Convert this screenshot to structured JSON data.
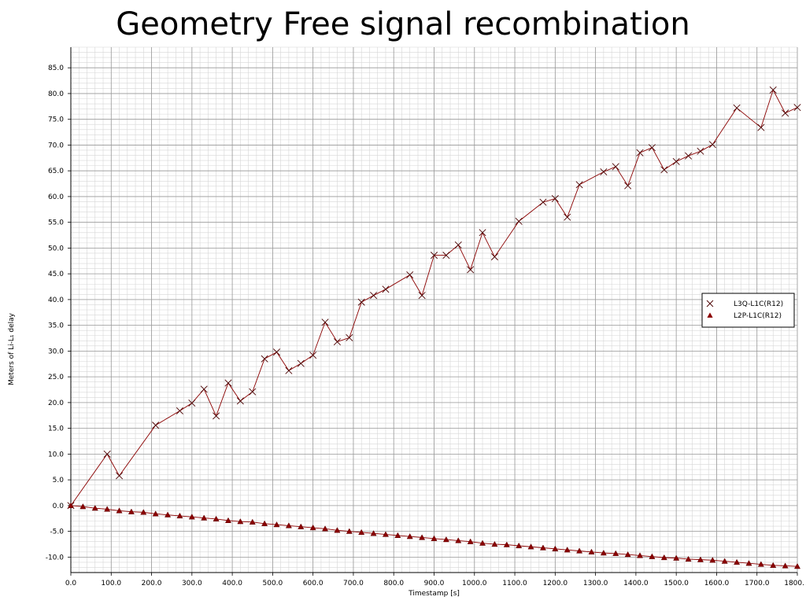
{
  "chart_data": {
    "type": "line",
    "title": "Geometry Free signal recombination",
    "xlabel": "Timestamp [s]",
    "ylabel": "Meters of Li-L₁ delay",
    "xlim": [
      0,
      1800
    ],
    "ylim": [
      -13,
      89
    ],
    "x_ticks": [
      0,
      100,
      200,
      300,
      400,
      500,
      600,
      700,
      800,
      900,
      1000,
      1100,
      1200,
      1300,
      1400,
      1500,
      1600,
      1700,
      1800
    ],
    "x_tick_labels": [
      "0.0",
      "100.0",
      "200.0",
      "300.0",
      "400.0",
      "500.0",
      "600.0",
      "700.0",
      "800.0",
      "900.0",
      "1000.0",
      "1100.0",
      "1200.0",
      "1300.0",
      "1400.0",
      "1500.0",
      "1600.0",
      "1700.0",
      "1800."
    ],
    "y_ticks": [
      -10,
      -5,
      0,
      5,
      10,
      15,
      20,
      25,
      30,
      35,
      40,
      45,
      50,
      55,
      60,
      65,
      70,
      75,
      80,
      85
    ],
    "y_tick_labels": [
      "-10.0",
      "-5.0",
      "0.0",
      "5.0",
      "10.0",
      "15.0",
      "20.0",
      "25.0",
      "30.0",
      "35.0",
      "40.0",
      "45.0",
      "50.0",
      "55.0",
      "60.0",
      "65.0",
      "70.0",
      "75.0",
      "80.0",
      "85.0"
    ],
    "grid": true,
    "legend_position": "right",
    "series": [
      {
        "name": "L3Q-L1C(R12)",
        "marker": "x",
        "color": "#8b0000",
        "x": [
          0,
          90,
          120,
          210,
          270,
          300,
          330,
          360,
          390,
          420,
          450,
          480,
          510,
          540,
          570,
          600,
          630,
          660,
          690,
          720,
          750,
          780,
          840,
          870,
          900,
          930,
          960,
          990,
          1020,
          1050,
          1110,
          1170,
          1200,
          1230,
          1260,
          1320,
          1350,
          1380,
          1410,
          1440,
          1470,
          1500,
          1530,
          1560,
          1590,
          1650,
          1710,
          1740,
          1770,
          1800
        ],
        "y": [
          0.0,
          10.0,
          5.8,
          15.6,
          18.4,
          19.9,
          22.6,
          17.4,
          23.8,
          20.3,
          22.1,
          28.5,
          29.8,
          26.2,
          27.6,
          29.2,
          35.6,
          31.8,
          32.6,
          39.5,
          40.8,
          42.0,
          44.8,
          40.8,
          48.6,
          48.6,
          50.6,
          45.8,
          53.0,
          48.3,
          55.2,
          58.9,
          59.6,
          56.0,
          62.3,
          64.8,
          65.8,
          62.1,
          68.5,
          69.5,
          65.2,
          66.8,
          67.9,
          68.8,
          70.1,
          77.2,
          73.4,
          80.7,
          76.2,
          77.3
        ]
      },
      {
        "name": "L2P-L1C(R12)",
        "marker": "triangle",
        "color": "#8b0000",
        "x": [
          0,
          30,
          60,
          90,
          120,
          150,
          180,
          210,
          240,
          270,
          300,
          330,
          360,
          390,
          420,
          450,
          480,
          510,
          540,
          570,
          600,
          630,
          660,
          690,
          720,
          750,
          780,
          810,
          840,
          870,
          900,
          930,
          960,
          990,
          1020,
          1050,
          1080,
          1110,
          1140,
          1170,
          1200,
          1230,
          1260,
          1290,
          1320,
          1350,
          1380,
          1410,
          1440,
          1470,
          1500,
          1530,
          1560,
          1590,
          1620,
          1650,
          1680,
          1710,
          1740,
          1770,
          1800
        ],
        "y": [
          0.0,
          -0.2,
          -0.5,
          -0.7,
          -1.0,
          -1.2,
          -1.3,
          -1.6,
          -1.8,
          -2.0,
          -2.2,
          -2.4,
          -2.6,
          -2.9,
          -3.1,
          -3.2,
          -3.5,
          -3.7,
          -3.9,
          -4.1,
          -4.3,
          -4.5,
          -4.8,
          -5.0,
          -5.2,
          -5.4,
          -5.6,
          -5.8,
          -6.0,
          -6.2,
          -6.4,
          -6.6,
          -6.8,
          -7.0,
          -7.3,
          -7.5,
          -7.6,
          -7.8,
          -8.0,
          -8.2,
          -8.4,
          -8.6,
          -8.8,
          -9.0,
          -9.2,
          -9.3,
          -9.5,
          -9.7,
          -9.9,
          -10.1,
          -10.2,
          -10.4,
          -10.5,
          -10.6,
          -10.8,
          -11.0,
          -11.2,
          -11.4,
          -11.6,
          -11.7,
          -11.8
        ]
      }
    ]
  }
}
